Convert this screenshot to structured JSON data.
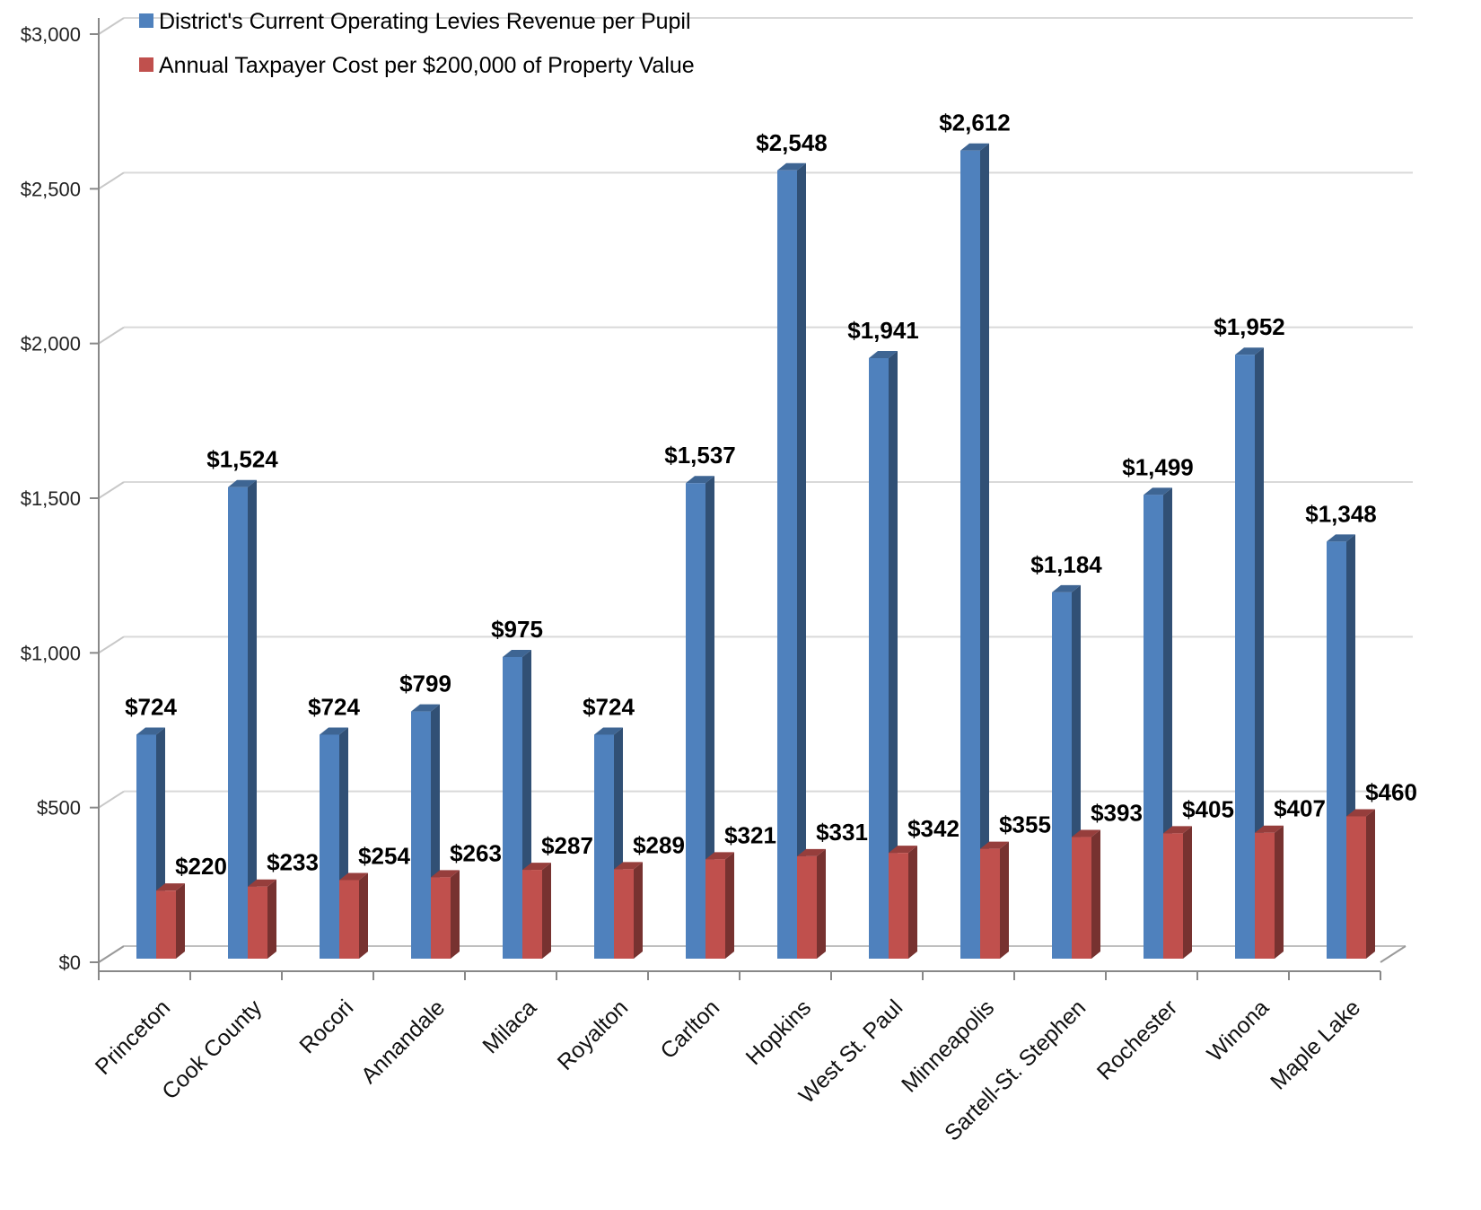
{
  "chart_data": {
    "type": "bar",
    "categories": [
      "Princeton",
      "Cook County",
      "Rocori",
      "Annandale",
      "Milaca",
      "Royalton",
      "Carlton",
      "Hopkins",
      "West St. Paul",
      "Minneapolis",
      "Sartell-St. Stephen",
      "Rochester",
      "Winona",
      "Maple Lake"
    ],
    "series": [
      {
        "name": "District's Current Operating Levies Revenue per Pupil",
        "color": "#4F81BD",
        "values": [
          724,
          1524,
          724,
          799,
          975,
          724,
          1537,
          2548,
          1941,
          2612,
          1184,
          1499,
          1952,
          1348
        ],
        "labels": [
          "$724",
          "$1,524",
          "$724",
          "$799",
          "$975",
          "$724",
          "$1,537",
          "$2,548",
          "$1,941",
          "$2,612",
          "$1,184",
          "$1,499",
          "$1,952",
          "$1,348"
        ]
      },
      {
        "name": "Annual Taxpayer Cost per $200,000 of Property Value",
        "color": "#C0504D",
        "values": [
          220,
          233,
          254,
          263,
          287,
          289,
          321,
          331,
          342,
          355,
          393,
          405,
          407,
          460
        ],
        "labels": [
          "$220",
          "$233",
          "$254",
          "$263",
          "$287",
          "$289",
          "$321",
          "$331",
          "$342",
          "$355",
          "$393",
          "$405",
          "$407",
          "$460"
        ]
      }
    ],
    "ylim": [
      0,
      3000
    ],
    "yticks": [
      0,
      500,
      1000,
      1500,
      2000,
      2500,
      3000
    ],
    "ytick_labels": [
      "$0",
      "$500",
      "$1,000",
      "$1,500",
      "$2,000",
      "$2,500",
      "$3,000"
    ],
    "grid": true,
    "legend_position": "top-left",
    "style": "3d-clustered-column"
  }
}
